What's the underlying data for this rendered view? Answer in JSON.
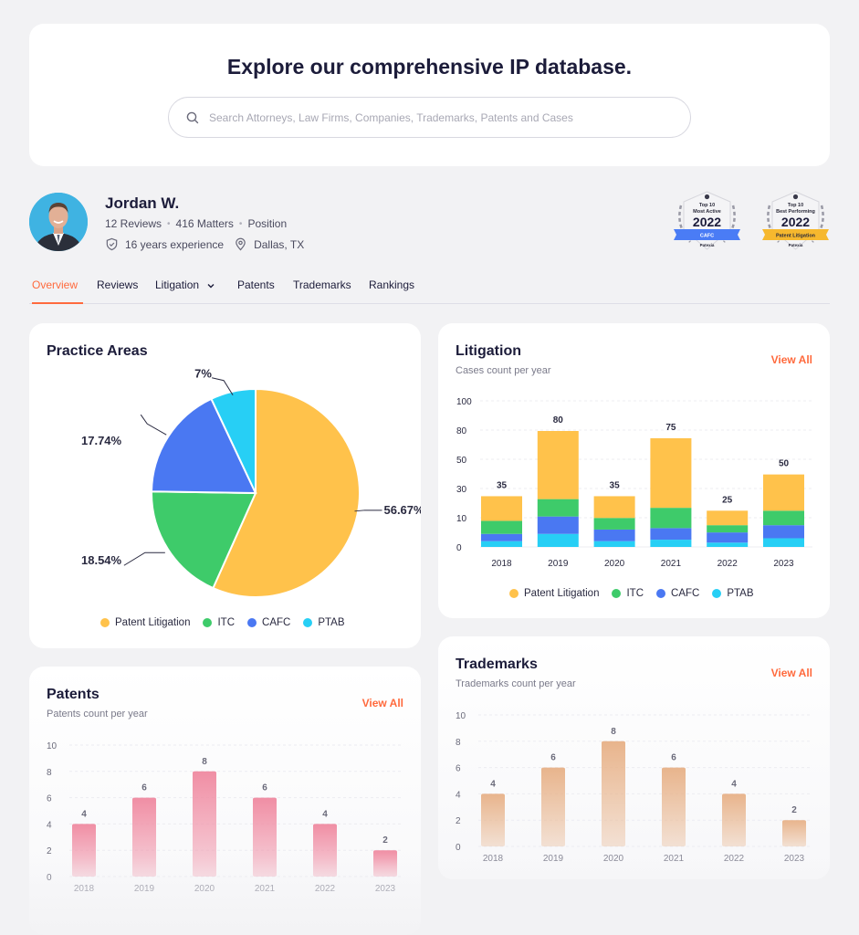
{
  "hero": {
    "title": "Explore our comprehensive IP database.",
    "search_placeholder": "Search Attorneys, Law Firms, Companies, Trademarks, Patents and Cases"
  },
  "profile": {
    "name": "Jordan W.",
    "reviews": "12 Reviews",
    "matters": "416 Matters",
    "position": "Position",
    "experience": "16 years experience",
    "location": "Dallas, TX",
    "badges": [
      {
        "top": "Top 10",
        "line": "Most Active",
        "year": "2022",
        "ribbon": "CAFC",
        "brand": "Patexia",
        "ribbon_color": "#4a7cf5"
      },
      {
        "top": "Top 10",
        "line": "Best Performing",
        "year": "2022",
        "ribbon": "Patent Litigation",
        "brand": "Patexia",
        "ribbon_color": "#f6b82e"
      }
    ]
  },
  "tabs": [
    {
      "label": "Overview",
      "active": true
    },
    {
      "label": "Reviews"
    },
    {
      "label": "Litigation",
      "dropdown": true
    },
    {
      "label": "Patents"
    },
    {
      "label": "Trademarks"
    },
    {
      "label": "Rankings"
    }
  ],
  "colors": {
    "patent_litigation": "#ffc24b",
    "itc": "#3ecb6a",
    "cafc": "#4a78f2",
    "ptab": "#27cff5",
    "accent": "#ff6a3d",
    "patents_bar": "#f08ea4",
    "trademarks_bar": "#e8b48c"
  },
  "practice": {
    "title": "Practice Areas",
    "legend": [
      "Patent Litigation",
      "ITC",
      "CAFC",
      "PTAB"
    ],
    "chart_data": {
      "type": "pie",
      "labels": [
        "Patent Litigation",
        "ITC",
        "CAFC",
        "PTAB"
      ],
      "values": [
        56.67,
        18.54,
        17.74,
        7
      ],
      "value_labels": [
        "56.67%",
        "18.54%",
        "17.74%",
        "7%"
      ]
    }
  },
  "litigation": {
    "title": "Litigation",
    "subtitle": "Cases count per year",
    "view_all": "View All",
    "legend": [
      "Patent Litigation",
      "ITC",
      "CAFC",
      "PTAB"
    ],
    "chart_data": {
      "type": "bar",
      "stacked": true,
      "categories": [
        "2018",
        "2019",
        "2020",
        "2021",
        "2022",
        "2023"
      ],
      "yticks": [
        "0",
        "10",
        "30",
        "50",
        "80",
        "100"
      ],
      "totals": [
        35,
        80,
        35,
        75,
        25,
        50
      ],
      "series": [
        {
          "name": "PTAB",
          "values": [
            4,
            9,
            4,
            5,
            3,
            6
          ]
        },
        {
          "name": "CAFC",
          "values": [
            5,
            12,
            8,
            8,
            7,
            9
          ]
        },
        {
          "name": "ITC",
          "values": [
            9,
            12,
            8,
            14,
            5,
            10
          ]
        },
        {
          "name": "Patent Litigation",
          "values": [
            17,
            47,
            15,
            48,
            10,
            25
          ]
        }
      ]
    }
  },
  "patents": {
    "title": "Patents",
    "subtitle": "Patents count per year",
    "view_all": "View All",
    "chart_data": {
      "type": "bar",
      "categories": [
        "2018",
        "2019",
        "2020",
        "2021",
        "2022",
        "2023"
      ],
      "values": [
        4,
        6,
        8,
        6,
        4,
        2
      ],
      "yticks": [
        "0",
        "2",
        "4",
        "6",
        "8",
        "10"
      ],
      "ylim": [
        0,
        10
      ]
    }
  },
  "trademarks": {
    "title": "Trademarks",
    "subtitle": "Trademarks count per year",
    "view_all": "View All",
    "chart_data": {
      "type": "bar",
      "categories": [
        "2018",
        "2019",
        "2020",
        "2021",
        "2022",
        "2023"
      ],
      "values": [
        4,
        6,
        8,
        6,
        4,
        2
      ],
      "yticks": [
        "0",
        "2",
        "4",
        "6",
        "8",
        "10"
      ],
      "ylim": [
        0,
        10
      ]
    }
  }
}
